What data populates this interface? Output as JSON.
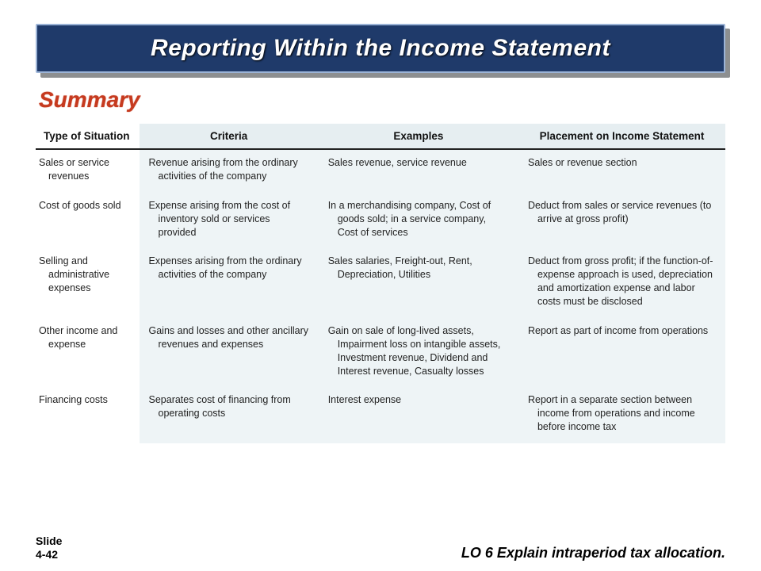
{
  "title": "Reporting Within the Income Statement",
  "summary_label": "Summary",
  "table": {
    "columns": [
      "Type of Situation",
      "Criteria",
      "Examples",
      "Placement on Income Statement"
    ],
    "col_widths_pct": [
      15,
      26,
      29,
      30
    ],
    "rows": [
      {
        "type": "Sales or service revenues",
        "criteria": "Revenue arising from the ordinary activities of the company",
        "examples": "Sales revenue, service revenue",
        "placement": "Sales or revenue section"
      },
      {
        "type": "Cost of goods sold",
        "criteria": "Expense arising from the cost of inventory sold or services provided",
        "examples": "In a merchandising company, Cost of goods sold; in a service company, Cost of services",
        "placement": "Deduct from sales or service revenues (to arrive at gross profit)"
      },
      {
        "type": "Selling and administrative expenses",
        "criteria": "Expenses arising from the ordinary activities of the company",
        "examples": "Sales salaries, Freight-out, Rent, Depreciation, Utilities",
        "placement": "Deduct from gross profit; if the function-of-expense approach is used, depreciation and amortization expense and labor costs must be disclosed"
      },
      {
        "type": "Other income and expense",
        "criteria": "Gains and losses and other ancillary revenues and expenses",
        "examples": "Gain on sale of long-lived assets, Impairment loss on intangible assets, Investment revenue, Dividend and Interest revenue, Casualty losses",
        "placement": "Report as part of income from operations"
      },
      {
        "type": "Financing costs",
        "criteria": "Separates cost of financing from operating costs",
        "examples": "Interest expense",
        "placement": "Report in a separate section between income from operations and income before income tax"
      }
    ]
  },
  "footer": {
    "slide_label": "Slide",
    "slide_number": "4-42",
    "lo": "LO 6  Explain intraperiod tax allocation."
  },
  "colors": {
    "banner_bg": "#1f3a6a",
    "banner_border": "#9bb3d6",
    "banner_shadow": "#8d8f90",
    "summary_heading": "#c63a1f",
    "table_header_bg": "#e6eef1",
    "table_body_bg": "#eef4f6",
    "header_rule": "#222222",
    "page_bg": "#ffffff"
  },
  "fonts": {
    "title_pt": 30,
    "summary_pt": 28,
    "table_header_pt": 13.5,
    "table_body_pt": 12.5,
    "lo_pt": 18,
    "slidenum_pt": 14
  }
}
